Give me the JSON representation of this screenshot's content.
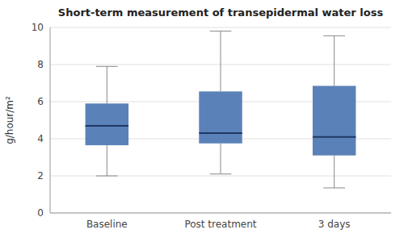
{
  "chart_data": {
    "type": "box",
    "title": "Short-term measurement of transepidermal water loss",
    "ylabel": "g/hour/m²",
    "categories": [
      "Baseline",
      "Post treatment",
      "3 days"
    ],
    "boxes": [
      {
        "whislo": 2.0,
        "q1": 3.65,
        "med": 4.7,
        "q3": 5.9,
        "whishi": 7.9
      },
      {
        "whislo": 2.1,
        "q1": 3.75,
        "med": 4.3,
        "q3": 6.55,
        "whishi": 9.8
      },
      {
        "whislo": 1.35,
        "q1": 3.1,
        "med": 4.1,
        "q3": 6.85,
        "whishi": 9.55
      }
    ],
    "ylim": [
      0,
      10
    ],
    "yticks": [
      0,
      2,
      4,
      6,
      8,
      10
    ],
    "color": "#5b82b8",
    "grid": true
  }
}
